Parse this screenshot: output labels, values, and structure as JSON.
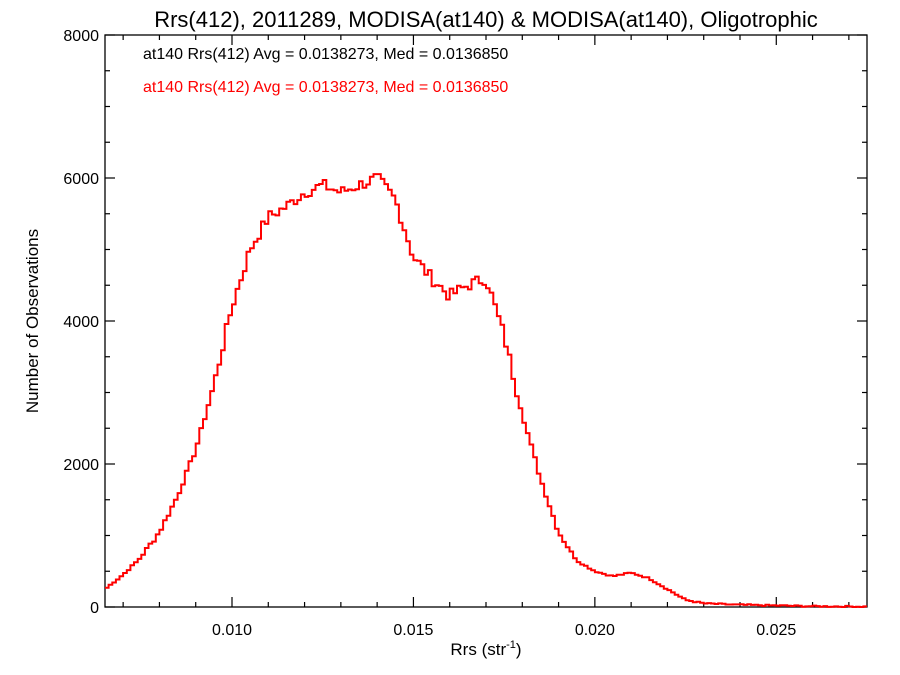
{
  "chart_data": {
    "type": "histogram",
    "title": "Rrs(412), 2011289, MODISA(at140) & MODISA(at140), Oligotrophic",
    "xlabel": "Rrs (str",
    "xlabel_sup": "-1",
    "xlabel_end": ")",
    "ylabel": "Number of Observations",
    "xlim": [
      0.0065,
      0.0275
    ],
    "ylim": [
      0,
      8000
    ],
    "x_ticks": [
      {
        "value": 0.01,
        "label": "0.010"
      },
      {
        "value": 0.015,
        "label": "0.015"
      },
      {
        "value": 0.02,
        "label": "0.020"
      },
      {
        "value": 0.025,
        "label": "0.025"
      }
    ],
    "y_ticks": [
      {
        "value": 0,
        "label": "0"
      },
      {
        "value": 2000,
        "label": "2000"
      },
      {
        "value": 4000,
        "label": "4000"
      },
      {
        "value": 6000,
        "label": "6000"
      },
      {
        "value": 8000,
        "label": "8000"
      }
    ],
    "legend": [
      {
        "text": "at140 Rrs(412) Avg = 0.0138273, Med = 0.0136850",
        "color": "#000000"
      },
      {
        "text": "at140 Rrs(412) Avg = 0.0138273, Med = 0.0136850",
        "color": "#ff0000"
      }
    ],
    "series": [
      {
        "color": "#ff0000",
        "x": [
          0.0065,
          0.007,
          0.0075,
          0.008,
          0.0085,
          0.009,
          0.0095,
          0.01,
          0.0105,
          0.011,
          0.0115,
          0.012,
          0.0125,
          0.013,
          0.0135,
          0.014,
          0.0145,
          0.015,
          0.0155,
          0.016,
          0.0165,
          0.017,
          0.0175,
          0.018,
          0.0185,
          0.019,
          0.0195,
          0.02,
          0.0205,
          0.021,
          0.0215,
          0.022,
          0.0225,
          0.023,
          0.024,
          0.025,
          0.026,
          0.0275
        ],
        "y": [
          250,
          450,
          700,
          1050,
          1550,
          2200,
          3100,
          4200,
          5000,
          5450,
          5600,
          5800,
          5900,
          5800,
          5900,
          6000,
          5700,
          4900,
          4600,
          4350,
          4500,
          4600,
          3800,
          2700,
          1800,
          1050,
          650,
          500,
          430,
          480,
          400,
          250,
          100,
          50,
          30,
          20,
          10,
          5
        ]
      }
    ]
  }
}
